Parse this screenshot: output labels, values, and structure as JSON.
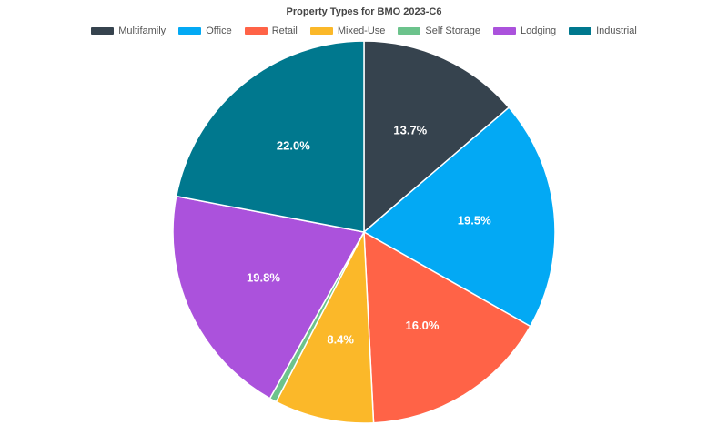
{
  "chart_data": {
    "type": "pie",
    "title": "Property Types for BMO 2023-C6",
    "legend_position": "top",
    "slices": [
      {
        "name": "Multifamily",
        "value": 13.7,
        "label": "13.7%",
        "color": "#36434e"
      },
      {
        "name": "Office",
        "value": 19.5,
        "label": "19.5%",
        "color": "#03a9f4"
      },
      {
        "name": "Retail",
        "value": 16.0,
        "label": "16.0%",
        "color": "#ff6347"
      },
      {
        "name": "Mixed-Use",
        "value": 8.4,
        "label": "8.4%",
        "color": "#fbb829"
      },
      {
        "name": "Self Storage",
        "value": 0.6,
        "label": "",
        "color": "#6cc38c"
      },
      {
        "name": "Lodging",
        "value": 19.8,
        "label": "19.8%",
        "color": "#ab52dc"
      },
      {
        "name": "Industrial",
        "value": 22.0,
        "label": "22.0%",
        "color": "#00788e"
      }
    ]
  }
}
